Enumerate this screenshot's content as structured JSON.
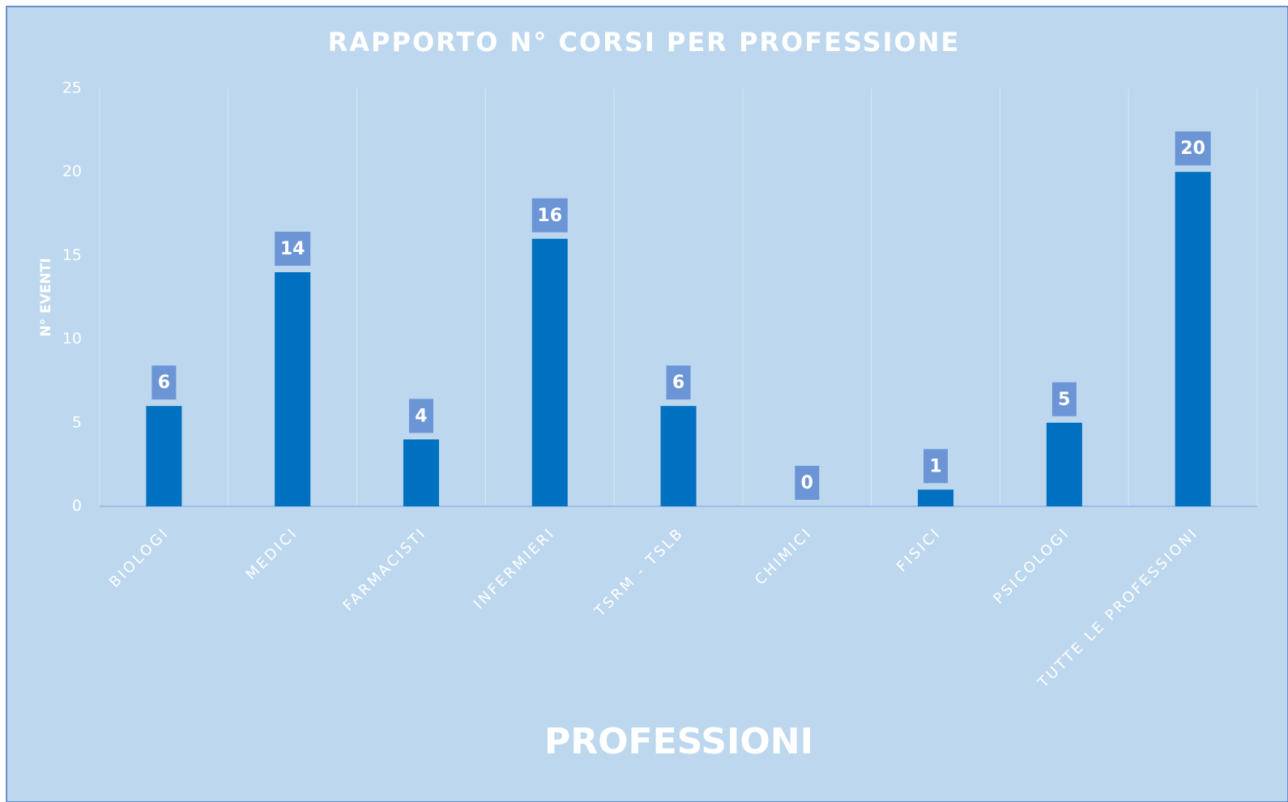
{
  "chart_data": {
    "type": "bar",
    "title": "RAPPORTO N° CORSI PER PROFESSIONE",
    "x_label": "PROFESSIONI",
    "y_label": "N° EVENTI",
    "categories": [
      "BIOLOGI",
      "MEDICI",
      "FARMACISTI",
      "INFERMIERI",
      "TSRM - TSLB",
      "CHIMICI",
      "FISICI",
      "PSICOLOGI",
      "TUTTE LE PROFESSIONI"
    ],
    "values": [
      6,
      14,
      4,
      16,
      6,
      0,
      1,
      5,
      20
    ],
    "color": "#0070c0",
    "ylim": [
      0,
      25
    ],
    "yticks": [
      0,
      5,
      10,
      15,
      20,
      25
    ]
  }
}
